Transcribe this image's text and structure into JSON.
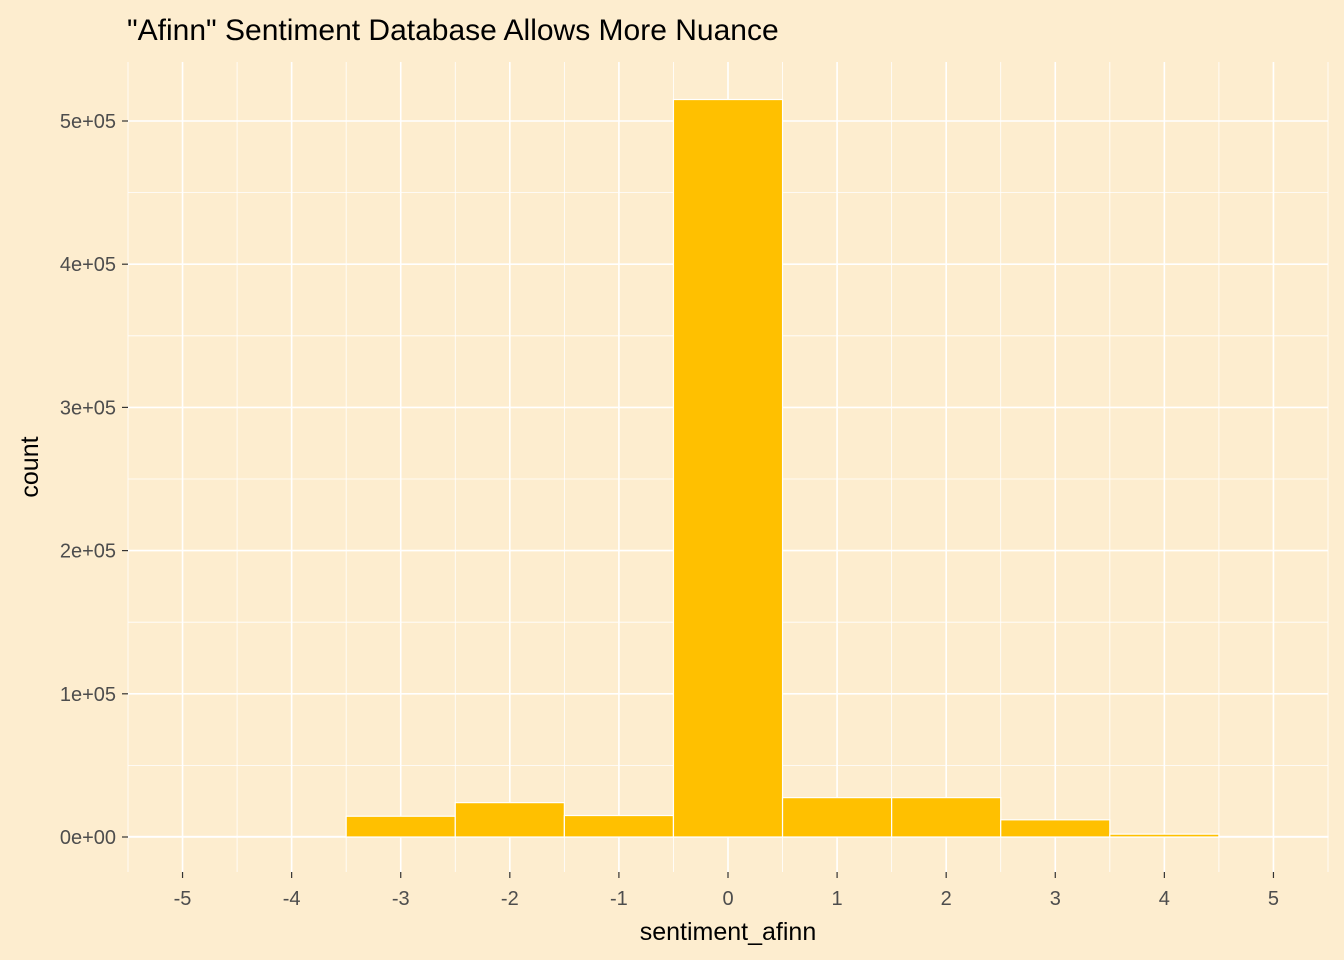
{
  "chart_data": {
    "type": "bar",
    "title": "\"Afinn\" Sentiment Database Allows More Nuance",
    "xlabel": "sentiment_afinn",
    "ylabel": "count",
    "x_ticks": [
      "-5",
      "-4",
      "-3",
      "-2",
      "-1",
      "0",
      "1",
      "2",
      "3",
      "4",
      "5"
    ],
    "y_ticks": [
      "0e+00",
      "1e+05",
      "2e+05",
      "3e+05",
      "4e+05",
      "5e+05"
    ],
    "xlim": [
      -5.5,
      5.5
    ],
    "ylim": [
      0,
      540000
    ],
    "bins": [
      {
        "x": -5,
        "count": 300
      },
      {
        "x": -4,
        "count": 200
      },
      {
        "x": -3,
        "count": 14500
      },
      {
        "x": -2,
        "count": 24000
      },
      {
        "x": -1,
        "count": 15000
      },
      {
        "x": 0,
        "count": 515000
      },
      {
        "x": 1,
        "count": 27500
      },
      {
        "x": 2,
        "count": 27500
      },
      {
        "x": 3,
        "count": 12000
      },
      {
        "x": 4,
        "count": 2000
      },
      {
        "x": 5,
        "count": 200
      }
    ],
    "grid": true,
    "colors": {
      "background": "#FDEDCF",
      "bar_fill": "#FFC000",
      "bar_outline": "#FFFFFF",
      "grid": "#FFFFFF"
    }
  }
}
